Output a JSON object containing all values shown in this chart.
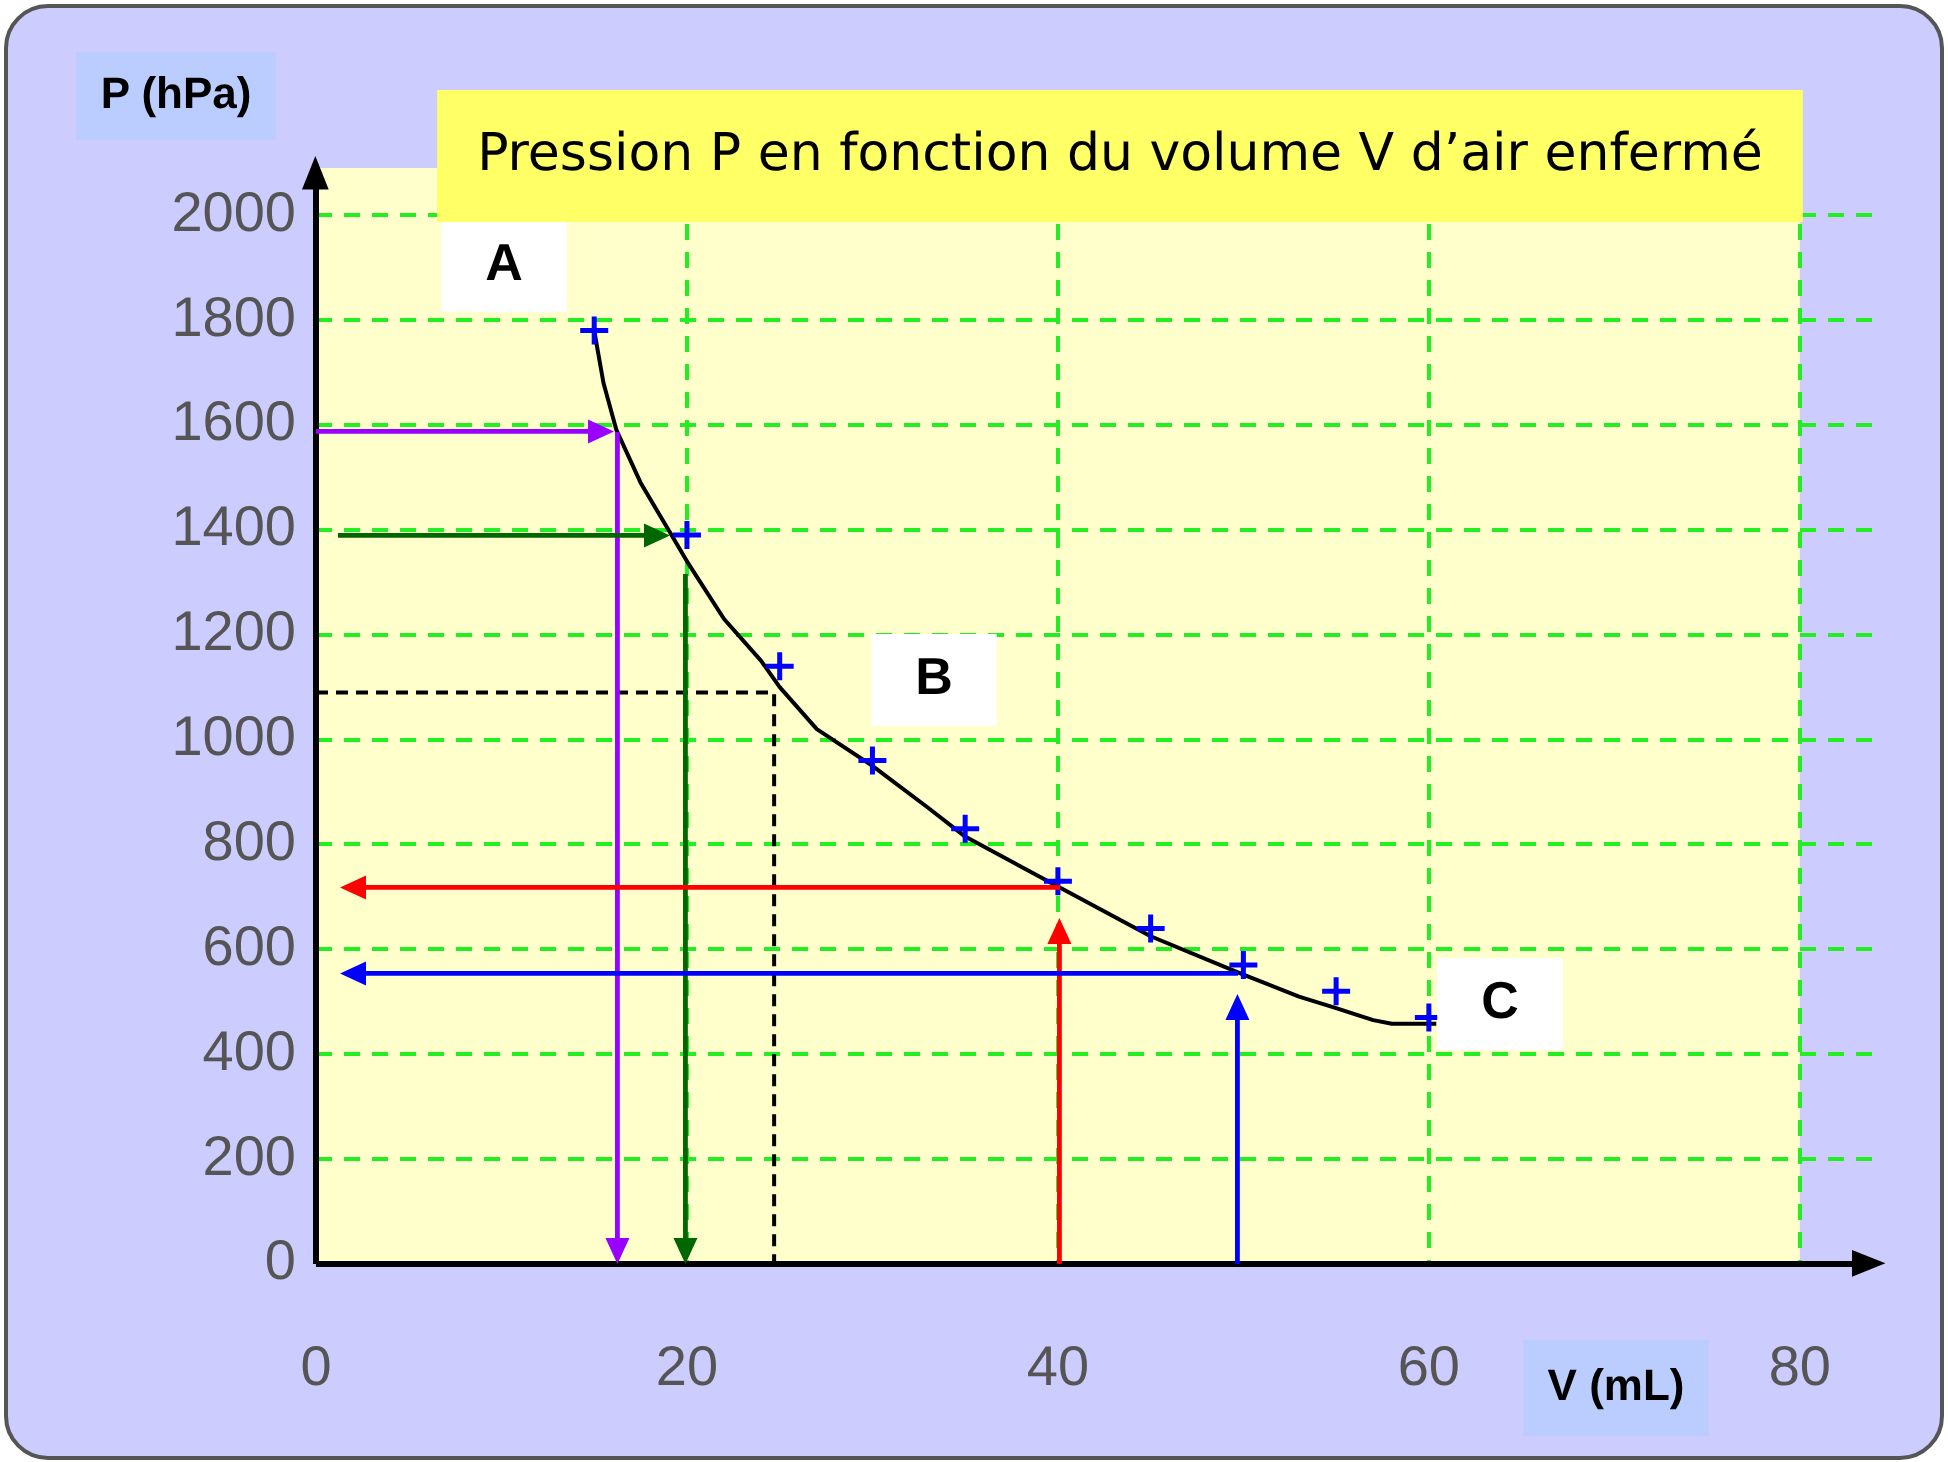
{
  "chart_data": {
    "type": "scatter",
    "title": "Pression P en fonction du volume V d’air enfermé",
    "xlabel": "V (mL)",
    "ylabel": "P (hPa)",
    "xlim": [
      0,
      84
    ],
    "ylim": [
      0,
      2090
    ],
    "xticks": [
      0,
      20,
      40,
      60,
      80
    ],
    "yticks": [
      0,
      200,
      400,
      600,
      800,
      1000,
      1200,
      1400,
      1600,
      1800,
      2000
    ],
    "grid": true,
    "annotations": [
      "A",
      "B",
      "C"
    ],
    "series": [
      {
        "color": "#0000ff",
        "marker": "cross",
        "x": [
          15,
          20,
          25,
          30,
          35,
          40,
          45,
          50,
          55,
          60
        ],
        "values": [
          1780,
          1390,
          1140,
          960,
          830,
          730,
          640,
          570,
          520,
          470
        ]
      },
      {
        "type": "line",
        "color": "#000000",
        "x": [
          15,
          15.5,
          16.2,
          17.5,
          19,
          20,
          22,
          24,
          25,
          27,
          30,
          33,
          35,
          40,
          45,
          50,
          53,
          55,
          57,
          58,
          60.4
        ],
        "values": [
          1780,
          1680,
          1590,
          1490,
          1400,
          1340,
          1230,
          1150,
          1100,
          1020,
          950,
          870,
          815,
          720,
          625,
          552,
          510,
          488,
          465,
          458,
          458
        ]
      },
      {
        "type": "line",
        "color": "#000000",
        "line_style": "dashed",
        "x": [
          0,
          24.7,
          24.7
        ],
        "values": [
          1090,
          1090,
          0
        ]
      }
    ]
  }
}
